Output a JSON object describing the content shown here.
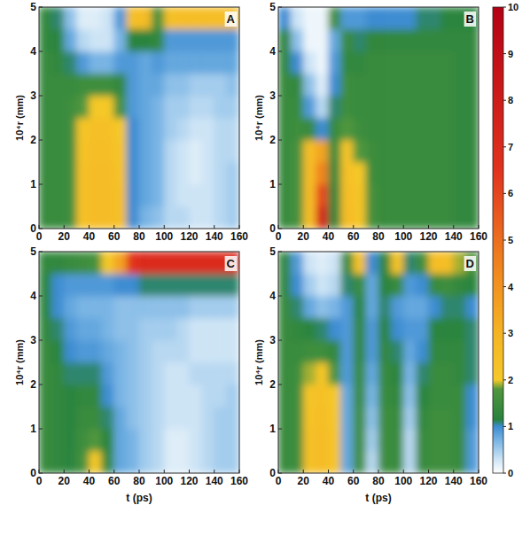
{
  "chart_data": {
    "type": "heatmap",
    "x_label": "t (ps)",
    "y_label": "10⁴r (mm)",
    "x": [
      0,
      10,
      20,
      30,
      40,
      50,
      60,
      70,
      80,
      90,
      100,
      110,
      120,
      130,
      140,
      150,
      160
    ],
    "y": [
      0,
      0.5,
      1,
      1.5,
      2,
      2.5,
      3,
      3.5,
      4,
      4.5,
      5
    ],
    "xlim": [
      0,
      160
    ],
    "ylim": [
      0,
      5
    ],
    "xticks": [
      0,
      20,
      40,
      60,
      80,
      100,
      120,
      140,
      160
    ],
    "yticks": [
      0,
      1,
      2,
      3,
      4,
      5
    ],
    "colorbar_range": [
      0,
      10
    ],
    "colorbar_ticks": [
      0,
      1,
      2,
      3,
      4,
      5,
      6,
      7,
      8,
      9,
      10
    ],
    "panels": [
      {
        "label": "A",
        "cells": [
          [
            1.4,
            1.4,
            1.5,
            2.4,
            2.6,
            2.6,
            2.4,
            1.0,
            0.7,
            0.6,
            0.4,
            0.4,
            0.3,
            0.3,
            0.4,
            0.5
          ],
          [
            1.4,
            1.4,
            1.5,
            2.4,
            2.6,
            2.6,
            2.4,
            1.0,
            0.8,
            0.7,
            0.4,
            0.3,
            0.3,
            0.3,
            0.4,
            0.5
          ],
          [
            1.4,
            1.4,
            1.5,
            2.4,
            2.6,
            2.6,
            2.3,
            1.0,
            0.8,
            0.7,
            0.4,
            0.3,
            0.2,
            0.3,
            0.4,
            0.5
          ],
          [
            1.4,
            1.4,
            1.5,
            2.3,
            2.5,
            2.5,
            2.2,
            1.0,
            0.8,
            0.7,
            0.4,
            0.3,
            0.2,
            0.3,
            0.4,
            0.4
          ],
          [
            1.4,
            1.4,
            1.5,
            2.2,
            2.4,
            2.4,
            2.0,
            1.0,
            0.8,
            0.7,
            0.5,
            0.4,
            0.3,
            0.3,
            0.4,
            0.4
          ],
          [
            1.4,
            1.4,
            1.5,
            1.8,
            2.0,
            2.0,
            1.6,
            0.9,
            0.8,
            0.7,
            0.5,
            0.5,
            0.4,
            0.4,
            0.5,
            0.5
          ],
          [
            1.4,
            1.4,
            1.4,
            1.5,
            1.5,
            1.5,
            1.3,
            0.9,
            0.8,
            0.8,
            0.6,
            0.6,
            0.5,
            0.5,
            0.5,
            0.6
          ],
          [
            1.4,
            1.3,
            1.1,
            0.9,
            0.7,
            0.7,
            0.9,
            0.9,
            0.8,
            0.9,
            0.8,
            0.8,
            0.8,
            0.8,
            0.8,
            0.8
          ],
          [
            1.3,
            1.2,
            0.8,
            0.4,
            0.3,
            0.3,
            0.7,
            1.2,
            1.2,
            1.3,
            0.9,
            0.9,
            0.9,
            0.9,
            0.9,
            0.9
          ],
          [
            1.3,
            1.1,
            0.6,
            0.2,
            0.2,
            0.3,
            0.9,
            2.4,
            2.6,
            1.6,
            2.4,
            2.5,
            2.5,
            2.5,
            2.5,
            2.5
          ]
        ]
      },
      {
        "label": "B",
        "cells": [
          [
            1.4,
            1.6,
            2.5,
            7.5,
            1.2,
            2.6,
            2.2,
            1.6,
            1.4,
            1.4,
            1.4,
            1.4,
            1.4,
            1.4,
            1.3,
            1.3
          ],
          [
            1.4,
            1.6,
            2.6,
            6.0,
            1.2,
            2.5,
            2.2,
            1.6,
            1.4,
            1.4,
            1.4,
            1.4,
            1.4,
            1.4,
            1.3,
            1.3
          ],
          [
            1.4,
            1.6,
            2.6,
            4.5,
            1.3,
            2.4,
            2.0,
            1.5,
            1.4,
            1.4,
            1.4,
            1.4,
            1.4,
            1.4,
            1.3,
            1.3
          ],
          [
            1.4,
            1.6,
            2.5,
            3.5,
            1.4,
            2.2,
            1.8,
            1.5,
            1.4,
            1.4,
            1.4,
            1.4,
            1.4,
            1.4,
            1.3,
            1.3
          ],
          [
            1.4,
            1.5,
            1.4,
            1.0,
            1.4,
            1.8,
            1.5,
            1.4,
            1.4,
            1.4,
            1.4,
            1.4,
            1.4,
            1.4,
            1.3,
            1.3
          ],
          [
            1.4,
            1.4,
            0.9,
            0.4,
            1.1,
            1.5,
            1.4,
            1.4,
            1.4,
            1.4,
            1.4,
            1.4,
            1.4,
            1.4,
            1.3,
            1.3
          ],
          [
            1.4,
            1.3,
            0.6,
            0.2,
            1.0,
            1.5,
            1.4,
            1.4,
            1.4,
            1.4,
            1.4,
            1.4,
            1.4,
            1.4,
            1.3,
            1.3
          ],
          [
            1.3,
            1.0,
            0.3,
            0.1,
            0.9,
            1.3,
            1.3,
            1.4,
            1.4,
            1.4,
            1.4,
            1.4,
            1.4,
            1.4,
            1.3,
            1.3
          ],
          [
            1.2,
            0.6,
            0.1,
            0.1,
            0.8,
            1.4,
            1.1,
            1.3,
            1.3,
            1.3,
            1.3,
            1.3,
            1.3,
            1.3,
            1.3,
            1.3
          ],
          [
            1.0,
            0.3,
            0.1,
            0.1,
            1.5,
            0.9,
            0.9,
            1.0,
            1.0,
            1.0,
            1.0,
            1.1,
            1.1,
            1.2,
            1.2,
            1.2
          ]
        ]
      },
      {
        "label": "C",
        "cells": [
          [
            1.4,
            1.3,
            1.2,
            1.6,
            2.0,
            1.3,
            0.8,
            0.7,
            0.5,
            0.4,
            0.2,
            0.2,
            0.3,
            0.4,
            0.5,
            0.5
          ],
          [
            1.4,
            1.3,
            1.2,
            1.5,
            1.8,
            1.2,
            0.8,
            0.7,
            0.5,
            0.4,
            0.2,
            0.2,
            0.3,
            0.4,
            0.5,
            0.5
          ],
          [
            1.4,
            1.3,
            1.2,
            1.4,
            1.4,
            1.1,
            0.8,
            0.6,
            0.5,
            0.4,
            0.3,
            0.3,
            0.3,
            0.4,
            0.5,
            0.5
          ],
          [
            1.4,
            1.3,
            1.2,
            1.3,
            1.3,
            1.0,
            0.7,
            0.6,
            0.5,
            0.4,
            0.3,
            0.3,
            0.3,
            0.4,
            0.4,
            0.5
          ],
          [
            1.4,
            1.3,
            1.1,
            1.1,
            1.1,
            0.9,
            0.7,
            0.6,
            0.5,
            0.4,
            0.3,
            0.3,
            0.4,
            0.4,
            0.4,
            0.4
          ],
          [
            1.4,
            1.2,
            1.0,
            0.9,
            0.9,
            0.8,
            0.7,
            0.6,
            0.5,
            0.4,
            0.4,
            0.4,
            0.3,
            0.3,
            0.3,
            0.3
          ],
          [
            1.3,
            1.1,
            0.9,
            0.8,
            0.8,
            0.7,
            0.6,
            0.6,
            0.5,
            0.5,
            0.5,
            0.4,
            0.3,
            0.3,
            0.3,
            0.3
          ],
          [
            1.2,
            1.0,
            0.8,
            0.7,
            0.7,
            0.7,
            0.6,
            0.6,
            0.6,
            0.6,
            0.6,
            0.6,
            0.5,
            0.5,
            0.5,
            0.5
          ],
          [
            1.2,
            1.0,
            0.9,
            0.9,
            0.9,
            0.9,
            1.0,
            1.0,
            1.1,
            1.1,
            1.1,
            1.1,
            1.1,
            1.1,
            1.1,
            1.1
          ],
          [
            1.3,
            1.3,
            1.4,
            1.5,
            1.6,
            2.0,
            3.5,
            6.5,
            7.0,
            7.0,
            7.0,
            7.0,
            7.0,
            7.0,
            7.0,
            7.0
          ]
        ]
      },
      {
        "label": "D",
        "cells": [
          [
            1.4,
            1.5,
            2.4,
            2.6,
            2.2,
            0.8,
            1.5,
            0.4,
            1.5,
            1.4,
            0.4,
            1.4,
            1.5,
            1.5,
            1.4,
            0.9
          ],
          [
            1.4,
            1.5,
            2.4,
            2.6,
            2.2,
            0.8,
            1.5,
            0.5,
            1.5,
            1.4,
            0.4,
            1.4,
            1.5,
            1.5,
            1.4,
            0.9
          ],
          [
            1.4,
            1.5,
            2.3,
            2.5,
            2.1,
            0.8,
            1.5,
            0.6,
            1.5,
            1.4,
            0.5,
            1.3,
            1.5,
            1.5,
            1.4,
            1.0
          ],
          [
            1.4,
            1.5,
            2.2,
            2.4,
            2.0,
            0.8,
            1.4,
            0.7,
            1.4,
            1.3,
            0.6,
            1.2,
            1.4,
            1.4,
            1.4,
            1.0
          ],
          [
            1.4,
            1.5,
            1.9,
            2.1,
            1.7,
            0.9,
            1.4,
            0.8,
            1.4,
            1.2,
            0.7,
            1.1,
            1.4,
            1.4,
            1.3,
            1.1
          ],
          [
            1.4,
            1.4,
            1.5,
            1.5,
            1.3,
            0.9,
            1.3,
            0.9,
            1.3,
            1.1,
            0.8,
            1.0,
            1.3,
            1.3,
            1.3,
            1.1
          ],
          [
            1.4,
            1.3,
            1.2,
            1.1,
            1.0,
            0.9,
            1.3,
            0.9,
            1.2,
            1.0,
            0.9,
            0.9,
            1.2,
            1.2,
            1.2,
            1.1
          ],
          [
            1.4,
            1.1,
            0.8,
            0.6,
            0.7,
            0.9,
            1.2,
            0.8,
            1.1,
            0.9,
            0.8,
            0.8,
            1.0,
            1.1,
            1.1,
            1.0
          ],
          [
            1.3,
            1.0,
            0.5,
            0.3,
            0.4,
            1.1,
            1.4,
            0.8,
            1.2,
            1.4,
            0.9,
            1.0,
            1.4,
            1.5,
            1.3,
            1.2
          ],
          [
            1.3,
            0.9,
            0.3,
            0.2,
            0.3,
            1.4,
            2.3,
            1.0,
            1.3,
            2.3,
            1.1,
            1.5,
            2.5,
            2.5,
            1.9,
            1.6
          ]
        ]
      }
    ]
  }
}
